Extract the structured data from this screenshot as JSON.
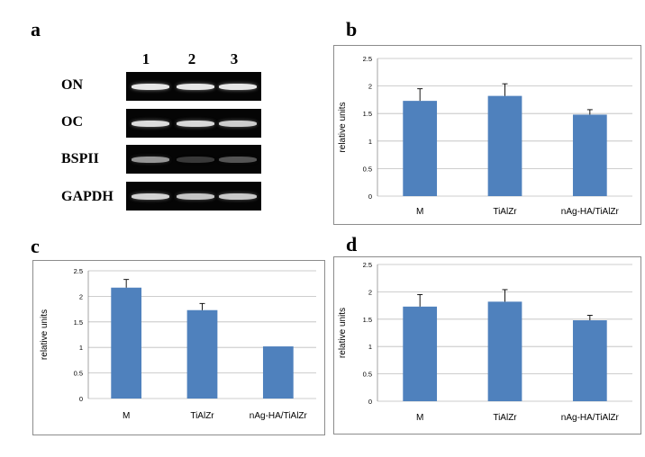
{
  "panels": {
    "a": "a",
    "b": "b",
    "c": "c",
    "d": "d"
  },
  "gel": {
    "lanes": [
      "1",
      "2",
      "3"
    ],
    "rows": [
      {
        "label": "ON",
        "intensities": [
          0.95,
          0.95,
          0.95
        ]
      },
      {
        "label": "OC",
        "intensities": [
          0.9,
          0.88,
          0.82
        ]
      },
      {
        "label": "BSPII",
        "intensities": [
          0.55,
          0.08,
          0.22
        ]
      },
      {
        "label": "GAPDH",
        "intensities": [
          0.85,
          0.78,
          0.8
        ]
      }
    ]
  },
  "chart_data": [
    {
      "panel": "b",
      "type": "bar",
      "categories": [
        "M",
        "TiAlZr",
        "nAg-HA/TiAlZr"
      ],
      "values": [
        1.73,
        1.82,
        1.48
      ],
      "errors": [
        0.22,
        0.22,
        0.09
      ],
      "ylabel": "relative units",
      "ylim": [
        0,
        2.5
      ],
      "yticks": [
        "0",
        "0.5",
        "1",
        "1.5",
        "2",
        "2.5"
      ],
      "grid": true,
      "bar_color": "#4f81bd"
    },
    {
      "panel": "c",
      "type": "bar",
      "categories": [
        "M",
        "TiAlZr",
        "nAg-HA/TiAlZr"
      ],
      "values": [
        2.17,
        1.73,
        1.02
      ],
      "errors": [
        0.16,
        0.13,
        0.0
      ],
      "ylabel": "relative units",
      "ylim": [
        0,
        2.5
      ],
      "yticks": [
        "0",
        "0.5",
        "1",
        "1.5",
        "2",
        "2.5"
      ],
      "grid": true,
      "bar_color": "#4f81bd"
    },
    {
      "panel": "d",
      "type": "bar",
      "categories": [
        "M",
        "TiAlZr",
        "nAg-HA/TiAlZr"
      ],
      "values": [
        1.73,
        1.82,
        1.48
      ],
      "errors": [
        0.22,
        0.22,
        0.09
      ],
      "ylabel": "relative units",
      "ylim": [
        0,
        2.5
      ],
      "yticks": [
        "0",
        "0.5",
        "1",
        "1.5",
        "2",
        "2.5"
      ],
      "grid": true,
      "bar_color": "#4f81bd"
    }
  ]
}
